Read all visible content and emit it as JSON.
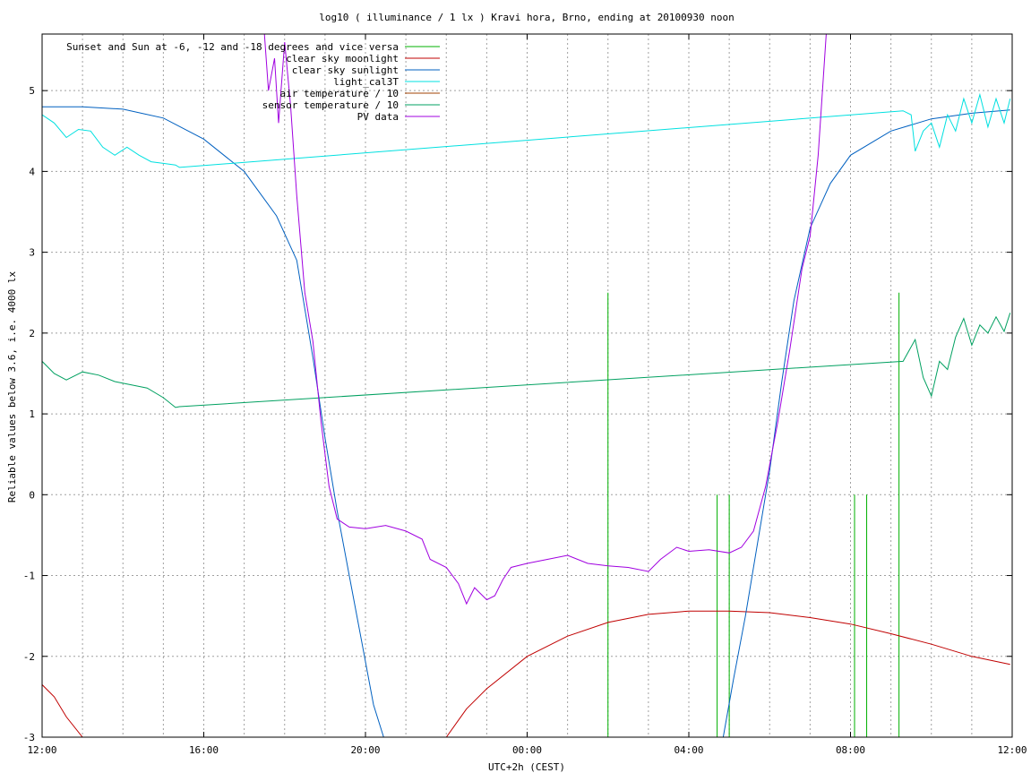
{
  "chart_data": {
    "type": "line",
    "title": "log10 ( illuminance / 1 lx ) Kravi hora, Brno, ending at 20100930 noon",
    "xlabel": "UTC+2h (CEST)",
    "ylabel": "Reliable values below 3.6, i.e. 4000 lx",
    "x_ticks": [
      "12:00",
      "16:00",
      "20:00",
      "00:00",
      "04:00",
      "08:00",
      "12:00"
    ],
    "x_range_hours": [
      0,
      24
    ],
    "ylim": [
      -3,
      5.7
    ],
    "y_ticks": [
      -3,
      -2,
      -1,
      0,
      1,
      2,
      3,
      4,
      5
    ],
    "grid": true,
    "legend_position": "top-left",
    "series": [
      {
        "name": "Sunset and Sun at -6, -12 and -18 degrees and vice versa",
        "color": "#00b000",
        "kind": "events",
        "points": [
          [
            14.0,
            2.5
          ],
          [
            16.7,
            0
          ],
          [
            17.0,
            0
          ],
          [
            20.1,
            0
          ],
          [
            20.4,
            0
          ],
          [
            21.2,
            2.5
          ]
        ]
      },
      {
        "name": "clear sky moonlight",
        "color": "#c00000",
        "points": [
          [
            0.0,
            -2.35
          ],
          [
            0.3,
            -2.5
          ],
          [
            0.6,
            -2.75
          ],
          [
            1.0,
            -3.0
          ],
          [
            10.0,
            -3.0
          ],
          [
            10.5,
            -2.65
          ],
          [
            11.0,
            -2.4
          ],
          [
            12.0,
            -2.0
          ],
          [
            13.0,
            -1.75
          ],
          [
            14.0,
            -1.58
          ],
          [
            15.0,
            -1.48
          ],
          [
            16.0,
            -1.44
          ],
          [
            17.0,
            -1.44
          ],
          [
            18.0,
            -1.46
          ],
          [
            19.0,
            -1.52
          ],
          [
            20.0,
            -1.6
          ],
          [
            21.0,
            -1.72
          ],
          [
            22.0,
            -1.85
          ],
          [
            23.0,
            -2.0
          ],
          [
            23.95,
            -2.1
          ]
        ]
      },
      {
        "name": "clear sky sunlight",
        "color": "#0060c0",
        "points": [
          [
            0.0,
            4.8
          ],
          [
            1.0,
            4.8
          ],
          [
            2.0,
            4.77
          ],
          [
            3.0,
            4.66
          ],
          [
            4.0,
            4.4
          ],
          [
            5.0,
            4.0
          ],
          [
            5.8,
            3.45
          ],
          [
            6.3,
            2.9
          ],
          [
            6.7,
            1.7
          ],
          [
            7.0,
            0.7
          ],
          [
            7.3,
            -0.2
          ],
          [
            7.6,
            -1.0
          ],
          [
            7.9,
            -1.8
          ],
          [
            8.2,
            -2.6
          ],
          [
            8.45,
            -3.0
          ],
          [
            16.85,
            -3.0
          ],
          [
            17.1,
            -2.3
          ],
          [
            17.4,
            -1.5
          ],
          [
            17.7,
            -0.6
          ],
          [
            18.0,
            0.3
          ],
          [
            18.3,
            1.4
          ],
          [
            18.6,
            2.4
          ],
          [
            19.0,
            3.3
          ],
          [
            19.5,
            3.85
          ],
          [
            20.0,
            4.2
          ],
          [
            21.0,
            4.5
          ],
          [
            22.0,
            4.65
          ],
          [
            23.0,
            4.72
          ],
          [
            23.95,
            4.76
          ]
        ]
      },
      {
        "name": "light_cal3T",
        "color": "#00e0e0",
        "points": [
          [
            0.0,
            4.7
          ],
          [
            0.3,
            4.6
          ],
          [
            0.6,
            4.42
          ],
          [
            0.9,
            4.52
          ],
          [
            1.2,
            4.5
          ],
          [
            1.5,
            4.3
          ],
          [
            1.8,
            4.2
          ],
          [
            2.1,
            4.3
          ],
          [
            2.4,
            4.2
          ],
          [
            2.7,
            4.12
          ],
          [
            3.0,
            4.1
          ],
          [
            3.3,
            4.08
          ],
          [
            3.4,
            4.05
          ],
          [
            21.3,
            4.75
          ],
          [
            21.5,
            4.7
          ],
          [
            21.6,
            4.25
          ],
          [
            21.8,
            4.5
          ],
          [
            22.0,
            4.6
          ],
          [
            22.2,
            4.3
          ],
          [
            22.4,
            4.7
          ],
          [
            22.6,
            4.5
          ],
          [
            22.8,
            4.9
          ],
          [
            23.0,
            4.6
          ],
          [
            23.2,
            4.95
          ],
          [
            23.4,
            4.55
          ],
          [
            23.6,
            4.9
          ],
          [
            23.8,
            4.6
          ],
          [
            23.95,
            4.9
          ]
        ]
      },
      {
        "name": "air temperature / 10",
        "color": "#a04000",
        "points": []
      },
      {
        "name": "sensor temperature / 10",
        "color": "#00a060",
        "points": [
          [
            0.0,
            1.65
          ],
          [
            0.3,
            1.5
          ],
          [
            0.6,
            1.42
          ],
          [
            1.0,
            1.52
          ],
          [
            1.4,
            1.48
          ],
          [
            1.8,
            1.4
          ],
          [
            2.2,
            1.36
          ],
          [
            2.6,
            1.32
          ],
          [
            3.0,
            1.2
          ],
          [
            3.3,
            1.08
          ],
          [
            3.4,
            1.09
          ],
          [
            21.3,
            1.65
          ],
          [
            21.6,
            1.92
          ],
          [
            21.8,
            1.45
          ],
          [
            22.0,
            1.22
          ],
          [
            22.2,
            1.65
          ],
          [
            22.4,
            1.55
          ],
          [
            22.6,
            1.95
          ],
          [
            22.8,
            2.18
          ],
          [
            23.0,
            1.85
          ],
          [
            23.2,
            2.1
          ],
          [
            23.4,
            2.0
          ],
          [
            23.6,
            2.2
          ],
          [
            23.8,
            2.02
          ],
          [
            23.95,
            2.25
          ]
        ]
      },
      {
        "name": "PV data",
        "color": "#a000e0",
        "points": [
          [
            5.5,
            5.7
          ],
          [
            5.6,
            5.0
          ],
          [
            5.75,
            5.4
          ],
          [
            5.85,
            4.6
          ],
          [
            6.0,
            5.6
          ],
          [
            6.15,
            4.8
          ],
          [
            6.3,
            3.7
          ],
          [
            6.4,
            3.1
          ],
          [
            6.5,
            2.5
          ],
          [
            6.7,
            1.9
          ],
          [
            6.9,
            0.9
          ],
          [
            7.1,
            0.1
          ],
          [
            7.3,
            -0.3
          ],
          [
            7.6,
            -0.4
          ],
          [
            8.0,
            -0.42
          ],
          [
            8.5,
            -0.38
          ],
          [
            9.0,
            -0.45
          ],
          [
            9.4,
            -0.55
          ],
          [
            9.6,
            -0.8
          ],
          [
            10.0,
            -0.9
          ],
          [
            10.3,
            -1.1
          ],
          [
            10.5,
            -1.35
          ],
          [
            10.7,
            -1.15
          ],
          [
            11.0,
            -1.3
          ],
          [
            11.2,
            -1.25
          ],
          [
            11.4,
            -1.05
          ],
          [
            11.6,
            -0.9
          ],
          [
            12.0,
            -0.85
          ],
          [
            12.5,
            -0.8
          ],
          [
            13.0,
            -0.75
          ],
          [
            13.5,
            -0.85
          ],
          [
            14.0,
            -0.88
          ],
          [
            14.5,
            -0.9
          ],
          [
            15.0,
            -0.95
          ],
          [
            15.3,
            -0.8
          ],
          [
            15.7,
            -0.65
          ],
          [
            16.0,
            -0.7
          ],
          [
            16.5,
            -0.68
          ],
          [
            17.0,
            -0.72
          ],
          [
            17.3,
            -0.65
          ],
          [
            17.6,
            -0.45
          ],
          [
            17.9,
            0.1
          ],
          [
            18.2,
            0.9
          ],
          [
            18.5,
            1.8
          ],
          [
            18.8,
            2.8
          ],
          [
            19.0,
            3.2
          ],
          [
            19.2,
            4.2
          ],
          [
            19.4,
            5.7
          ]
        ]
      }
    ]
  }
}
